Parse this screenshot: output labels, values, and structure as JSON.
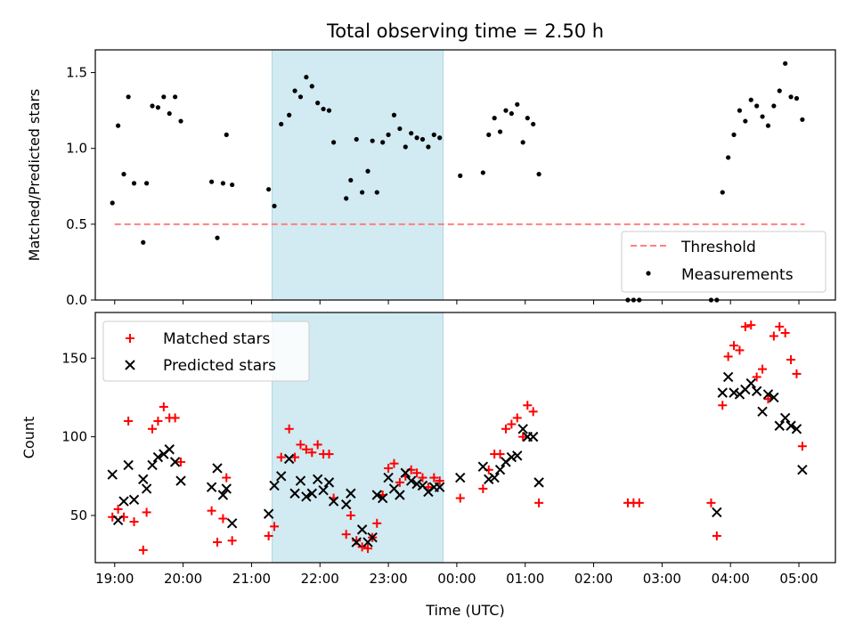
{
  "chart_data": [
    {
      "type": "scatter",
      "title": "Total observing time = 2.50 h",
      "xlabel": "",
      "ylabel": "Matched/Predicted stars",
      "xlim": [
        "18:43",
        "05:32"
      ],
      "ylim": [
        0,
        1.65
      ],
      "yticks": [
        0.0,
        0.5,
        1.0,
        1.5
      ],
      "ytick_labels": [
        "0.0",
        "0.5",
        "1.0",
        "1.5"
      ],
      "xticks": [
        "19:00",
        "20:00",
        "21:00",
        "22:00",
        "23:00",
        "00:00",
        "01:00",
        "02:00",
        "03:00",
        "04:00",
        "05:00"
      ],
      "shaded_interval": [
        "21:18",
        "23:48"
      ],
      "shade_color": "#add8e6",
      "grid": false,
      "legend_position": "lower-right",
      "threshold": {
        "name": "Threshold",
        "value": 0.5,
        "x_range": [
          "19:00",
          "05:05"
        ],
        "color": "#ff7f7f",
        "style": "dashed"
      },
      "series": [
        {
          "name": "Measurements",
          "marker": "dot",
          "color": "#000000",
          "points": [
            [
              "18:58",
              0.64
            ],
            [
              "19:03",
              1.15
            ],
            [
              "19:08",
              0.83
            ],
            [
              "19:12",
              1.34
            ],
            [
              "19:17",
              0.77
            ],
            [
              "19:25",
              0.38
            ],
            [
              "19:28",
              0.77
            ],
            [
              "19:33",
              1.28
            ],
            [
              "19:38",
              1.27
            ],
            [
              "19:43",
              1.34
            ],
            [
              "19:48",
              1.23
            ],
            [
              "19:53",
              1.34
            ],
            [
              "19:58",
              1.18
            ],
            [
              "20:25",
              0.78
            ],
            [
              "20:30",
              0.41
            ],
            [
              "20:35",
              0.77
            ],
            [
              "20:38",
              1.09
            ],
            [
              "20:43",
              0.76
            ],
            [
              "21:15",
              0.73
            ],
            [
              "21:20",
              0.62
            ],
            [
              "21:26",
              1.16
            ],
            [
              "21:33",
              1.22
            ],
            [
              "21:38",
              1.38
            ],
            [
              "21:43",
              1.34
            ],
            [
              "21:48",
              1.47
            ],
            [
              "21:53",
              1.41
            ],
            [
              "21:58",
              1.3
            ],
            [
              "22:03",
              1.26
            ],
            [
              "22:08",
              1.25
            ],
            [
              "22:12",
              1.04
            ],
            [
              "22:23",
              0.67
            ],
            [
              "22:27",
              0.79
            ],
            [
              "22:32",
              1.06
            ],
            [
              "22:37",
              0.71
            ],
            [
              "22:42",
              0.85
            ],
            [
              "22:46",
              1.05
            ],
            [
              "22:50",
              0.71
            ],
            [
              "22:55",
              1.04
            ],
            [
              "23:00",
              1.09
            ],
            [
              "23:05",
              1.22
            ],
            [
              "23:10",
              1.13
            ],
            [
              "23:15",
              1.01
            ],
            [
              "23:20",
              1.1
            ],
            [
              "23:25",
              1.07
            ],
            [
              "23:30",
              1.06
            ],
            [
              "23:35",
              1.01
            ],
            [
              "23:40",
              1.09
            ],
            [
              "23:45",
              1.07
            ],
            [
              "00:03",
              0.82
            ],
            [
              "00:23",
              0.84
            ],
            [
              "00:28",
              1.09
            ],
            [
              "00:33",
              1.2
            ],
            [
              "00:38",
              1.11
            ],
            [
              "00:43",
              1.25
            ],
            [
              "00:48",
              1.23
            ],
            [
              "00:53",
              1.29
            ],
            [
              "00:58",
              1.04
            ],
            [
              "01:02",
              1.2
            ],
            [
              "01:07",
              1.16
            ],
            [
              "01:12",
              0.83
            ],
            [
              "02:30",
              0.0
            ],
            [
              "02:35",
              0.0
            ],
            [
              "02:40",
              0.0
            ],
            [
              "03:43",
              0.0
            ],
            [
              "03:48",
              0.0
            ],
            [
              "03:53",
              0.71
            ],
            [
              "03:58",
              0.94
            ],
            [
              "04:03",
              1.09
            ],
            [
              "04:08",
              1.25
            ],
            [
              "04:13",
              1.18
            ],
            [
              "04:18",
              1.32
            ],
            [
              "04:23",
              1.28
            ],
            [
              "04:28",
              1.21
            ],
            [
              "04:33",
              1.15
            ],
            [
              "04:38",
              1.28
            ],
            [
              "04:43",
              1.38
            ],
            [
              "04:48",
              1.56
            ],
            [
              "04:53",
              1.34
            ],
            [
              "04:58",
              1.33
            ],
            [
              "05:03",
              1.19
            ]
          ]
        }
      ]
    },
    {
      "type": "scatter",
      "title": "",
      "xlabel": "Time (UTC)",
      "ylabel": "Count",
      "xlim": [
        "18:43",
        "05:32"
      ],
      "ylim": [
        20,
        179
      ],
      "yticks": [
        50,
        100,
        150
      ],
      "ytick_labels": [
        "50",
        "100",
        "150"
      ],
      "xticks": [
        "19:00",
        "20:00",
        "21:00",
        "22:00",
        "23:00",
        "00:00",
        "01:00",
        "02:00",
        "03:00",
        "04:00",
        "05:00"
      ],
      "xtick_labels": [
        "19:00",
        "20:00",
        "21:00",
        "22:00",
        "23:00",
        "00:00",
        "01:00",
        "02:00",
        "03:00",
        "04:00",
        "05:00"
      ],
      "shaded_interval": [
        "21:18",
        "23:48"
      ],
      "shade_color": "#add8e6",
      "grid": false,
      "legend_position": "upper-left",
      "series": [
        {
          "name": "Matched stars",
          "marker": "plus",
          "color": "#ff0000",
          "points": [
            [
              "18:58",
              49
            ],
            [
              "19:03",
              54
            ],
            [
              "19:08",
              49
            ],
            [
              "19:12",
              110
            ],
            [
              "19:17",
              46
            ],
            [
              "19:25",
              28
            ],
            [
              "19:28",
              52
            ],
            [
              "19:33",
              105
            ],
            [
              "19:38",
              110
            ],
            [
              "19:43",
              119
            ],
            [
              "19:48",
              112
            ],
            [
              "19:53",
              112
            ],
            [
              "19:58",
              84
            ],
            [
              "20:25",
              53
            ],
            [
              "20:30",
              33
            ],
            [
              "20:35",
              48
            ],
            [
              "20:38",
              74
            ],
            [
              "20:43",
              34
            ],
            [
              "21:15",
              37
            ],
            [
              "21:20",
              43
            ],
            [
              "21:26",
              87
            ],
            [
              "21:33",
              105
            ],
            [
              "21:38",
              87
            ],
            [
              "21:43",
              95
            ],
            [
              "21:48",
              92
            ],
            [
              "21:53",
              90
            ],
            [
              "21:58",
              95
            ],
            [
              "22:03",
              89
            ],
            [
              "22:08",
              89
            ],
            [
              "22:12",
              61
            ],
            [
              "22:23",
              38
            ],
            [
              "22:27",
              50
            ],
            [
              "22:32",
              34
            ],
            [
              "22:37",
              30
            ],
            [
              "22:42",
              29
            ],
            [
              "22:46",
              36
            ],
            [
              "22:50",
              45
            ],
            [
              "22:55",
              63
            ],
            [
              "23:00",
              80
            ],
            [
              "23:05",
              83
            ],
            [
              "23:10",
              71
            ],
            [
              "23:15",
              75
            ],
            [
              "23:20",
              79
            ],
            [
              "23:25",
              77
            ],
            [
              "23:30",
              74
            ],
            [
              "23:35",
              68
            ],
            [
              "23:40",
              74
            ],
            [
              "23:45",
              72
            ],
            [
              "00:03",
              61
            ],
            [
              "00:23",
              67
            ],
            [
              "00:28",
              79
            ],
            [
              "00:33",
              89
            ],
            [
              "00:38",
              89
            ],
            [
              "00:43",
              105
            ],
            [
              "00:48",
              108
            ],
            [
              "00:53",
              112
            ],
            [
              "00:58",
              100
            ],
            [
              "01:02",
              120
            ],
            [
              "01:07",
              116
            ],
            [
              "01:12",
              58
            ],
            [
              "02:30",
              58
            ],
            [
              "02:35",
              58
            ],
            [
              "02:40",
              58
            ],
            [
              "03:43",
              58
            ],
            [
              "03:48",
              37
            ],
            [
              "03:53",
              120
            ],
            [
              "03:58",
              151
            ],
            [
              "04:03",
              158
            ],
            [
              "04:08",
              155
            ],
            [
              "04:13",
              170
            ],
            [
              "04:18",
              171
            ],
            [
              "04:23",
              138
            ],
            [
              "04:28",
              143
            ],
            [
              "04:33",
              124
            ],
            [
              "04:38",
              164
            ],
            [
              "04:43",
              170
            ],
            [
              "04:48",
              166
            ],
            [
              "04:53",
              149
            ],
            [
              "04:58",
              140
            ],
            [
              "05:03",
              94
            ]
          ]
        },
        {
          "name": "Predicted stars",
          "marker": "x",
          "color": "#000000",
          "points": [
            [
              "18:58",
              76
            ],
            [
              "19:03",
              47
            ],
            [
              "19:08",
              59
            ],
            [
              "19:12",
              82
            ],
            [
              "19:17",
              60
            ],
            [
              "19:25",
              73
            ],
            [
              "19:28",
              67
            ],
            [
              "19:33",
              82
            ],
            [
              "19:38",
              87
            ],
            [
              "19:43",
              89
            ],
            [
              "19:48",
              92
            ],
            [
              "19:53",
              84
            ],
            [
              "19:58",
              72
            ],
            [
              "20:25",
              68
            ],
            [
              "20:30",
              80
            ],
            [
              "20:35",
              63
            ],
            [
              "20:38",
              67
            ],
            [
              "20:43",
              45
            ],
            [
              "21:15",
              51
            ],
            [
              "21:20",
              69
            ],
            [
              "21:26",
              75
            ],
            [
              "21:33",
              86
            ],
            [
              "21:38",
              64
            ],
            [
              "21:43",
              72
            ],
            [
              "21:48",
              62
            ],
            [
              "21:53",
              64
            ],
            [
              "21:58",
              73
            ],
            [
              "22:03",
              66
            ],
            [
              "22:08",
              71
            ],
            [
              "22:12",
              59
            ],
            [
              "22:23",
              57
            ],
            [
              "22:27",
              64
            ],
            [
              "22:32",
              33
            ],
            [
              "22:37",
              41
            ],
            [
              "22:42",
              33
            ],
            [
              "22:46",
              36
            ],
            [
              "22:50",
              63
            ],
            [
              "22:55",
              61
            ],
            [
              "23:00",
              74
            ],
            [
              "23:05",
              67
            ],
            [
              "23:10",
              63
            ],
            [
              "23:15",
              77
            ],
            [
              "23:20",
              72
            ],
            [
              "23:25",
              70
            ],
            [
              "23:30",
              69
            ],
            [
              "23:35",
              65
            ],
            [
              "23:40",
              68
            ],
            [
              "23:45",
              68
            ],
            [
              "00:03",
              74
            ],
            [
              "00:23",
              81
            ],
            [
              "00:28",
              73
            ],
            [
              "00:33",
              74
            ],
            [
              "00:38",
              79
            ],
            [
              "00:43",
              84
            ],
            [
              "00:48",
              87
            ],
            [
              "00:53",
              88
            ],
            [
              "00:58",
              105
            ],
            [
              "01:02",
              100
            ],
            [
              "01:07",
              100
            ],
            [
              "01:12",
              71
            ],
            [
              "03:48",
              52
            ],
            [
              "03:53",
              128
            ],
            [
              "03:58",
              138
            ],
            [
              "04:03",
              128
            ],
            [
              "04:08",
              127
            ],
            [
              "04:13",
              130
            ],
            [
              "04:18",
              134
            ],
            [
              "04:23",
              129
            ],
            [
              "04:28",
              116
            ],
            [
              "04:33",
              127
            ],
            [
              "04:38",
              125
            ],
            [
              "04:43",
              107
            ],
            [
              "04:48",
              112
            ],
            [
              "04:53",
              107
            ],
            [
              "04:58",
              105
            ],
            [
              "05:03",
              79
            ]
          ]
        }
      ]
    }
  ]
}
